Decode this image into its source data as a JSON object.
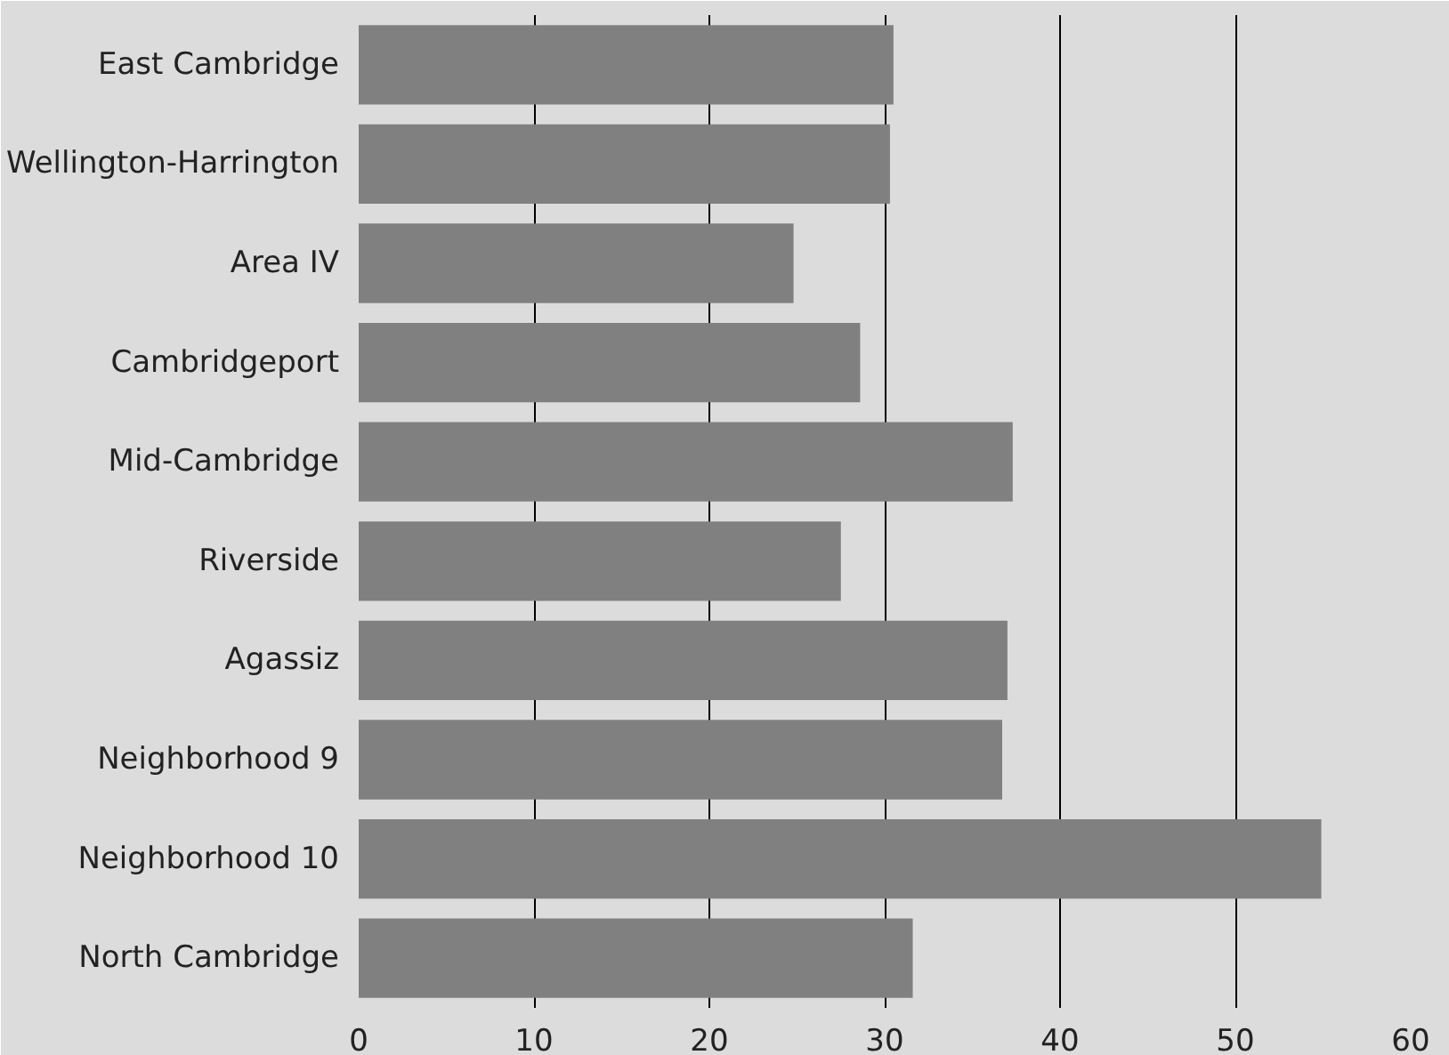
{
  "chart_data": {
    "type": "bar",
    "orientation": "horizontal",
    "categories": [
      "East Cambridge",
      "Wellington-Harrington",
      "Area IV",
      "Cambridgeport",
      "Mid-Cambridge",
      "Riverside",
      "Agassiz",
      "Neighborhood 9",
      "Neighborhood 10",
      "North Cambridge"
    ],
    "values": [
      30.5,
      30.3,
      24.8,
      28.6,
      37.3,
      27.5,
      37.0,
      36.7,
      54.9,
      31.6
    ],
    "color": "#808080",
    "xlim": [
      0,
      60
    ],
    "xticks": [
      0,
      10,
      20,
      30,
      40,
      50,
      60
    ],
    "grid": "x"
  }
}
